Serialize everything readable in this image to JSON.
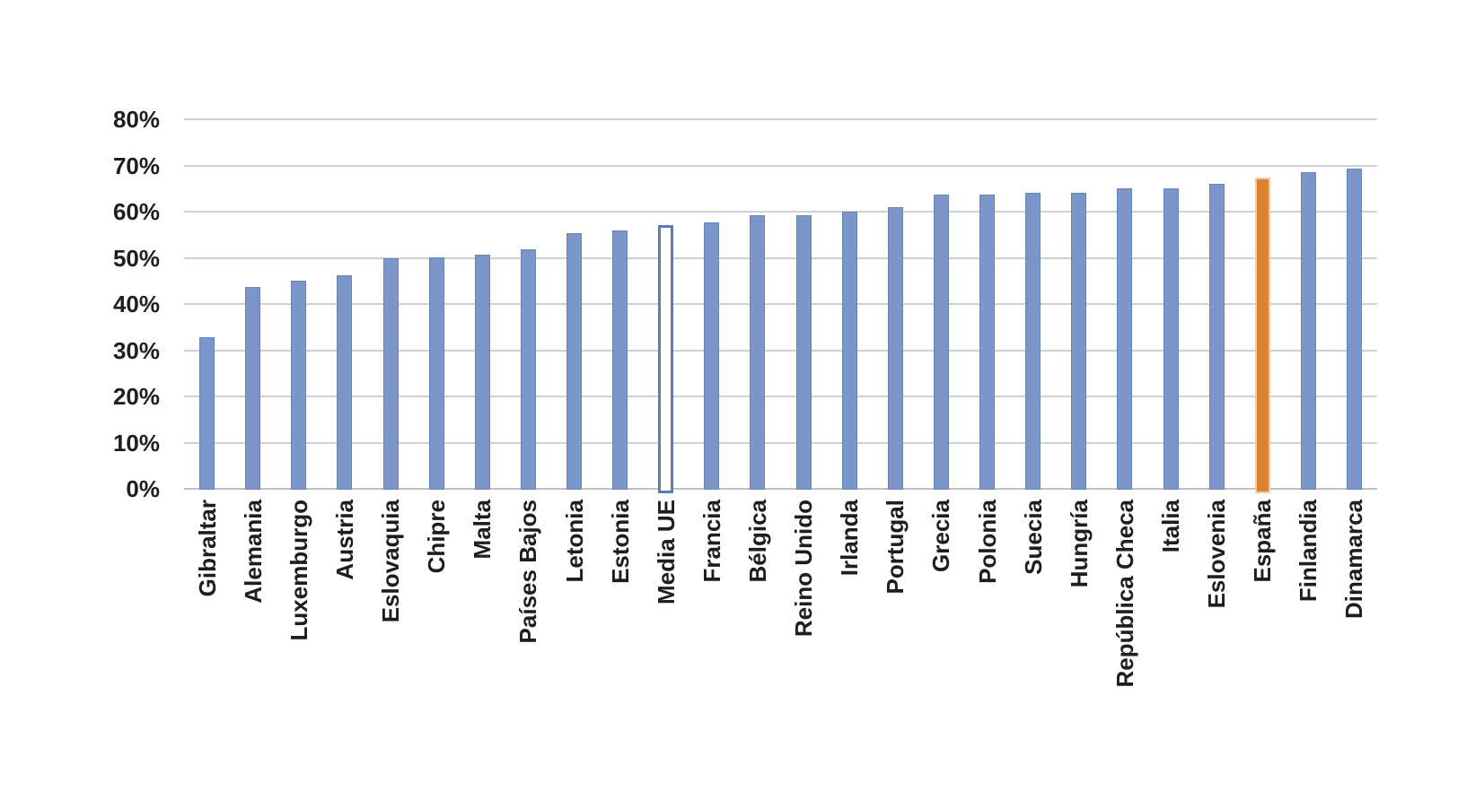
{
  "chart_data": {
    "type": "bar",
    "title": "",
    "categories": [
      "Gibraltar",
      "Alemania",
      "Luxemburgo",
      "Austria",
      "Eslovaquia",
      "Chipre",
      "Malta",
      "Países Bajos",
      "Letonia",
      "Estonia",
      "Media UE",
      "Francia",
      "Bélgica",
      "Reino Unido",
      "Irlanda",
      "Portugal",
      "Grecia",
      "Polonia",
      "Suecia",
      "Hungría",
      "República Checa",
      "Italia",
      "Eslovenia",
      "España",
      "Finlandia",
      "Dinamarca"
    ],
    "values": [
      32.9,
      43.7,
      45.0,
      46.3,
      49.9,
      50.2,
      50.6,
      51.9,
      55.4,
      55.9,
      57.1,
      57.6,
      59.2,
      59.2,
      60.0,
      60.9,
      63.7,
      63.7,
      64.1,
      64.1,
      65.0,
      65.0,
      66.1,
      67.3,
      68.6,
      69.3
    ],
    "bar_styles": {
      "Media UE": "outline",
      "España": "highlight"
    },
    "yticks": [
      {
        "label": "0%",
        "value": 0
      },
      {
        "label": "10%",
        "value": 10
      },
      {
        "label": "20%",
        "value": 20
      },
      {
        "label": "30%",
        "value": 30
      },
      {
        "label": "40%",
        "value": 40
      },
      {
        "label": "50%",
        "value": 50
      },
      {
        "label": "60%",
        "value": 60
      },
      {
        "label": "70%",
        "value": 70
      },
      {
        "label": "80%",
        "value": 80
      }
    ],
    "ylim": [
      0,
      80
    ],
    "grid": true,
    "legend": false,
    "xlabel": "",
    "ylabel": "",
    "colors": {
      "background": "#FFFFFF",
      "bar_fill": "#7C96C9",
      "bar_border": "#6484BE",
      "outline_bar_fill": "#FFFFFF",
      "outline_bar_border": "#5B7CBA",
      "highlight_fill": "#DD8133",
      "highlight_border": "#F2CBAD",
      "gridline": "#D0D0D0",
      "axis_line": "#C0C0C0",
      "text": "#1E1E1E"
    }
  }
}
